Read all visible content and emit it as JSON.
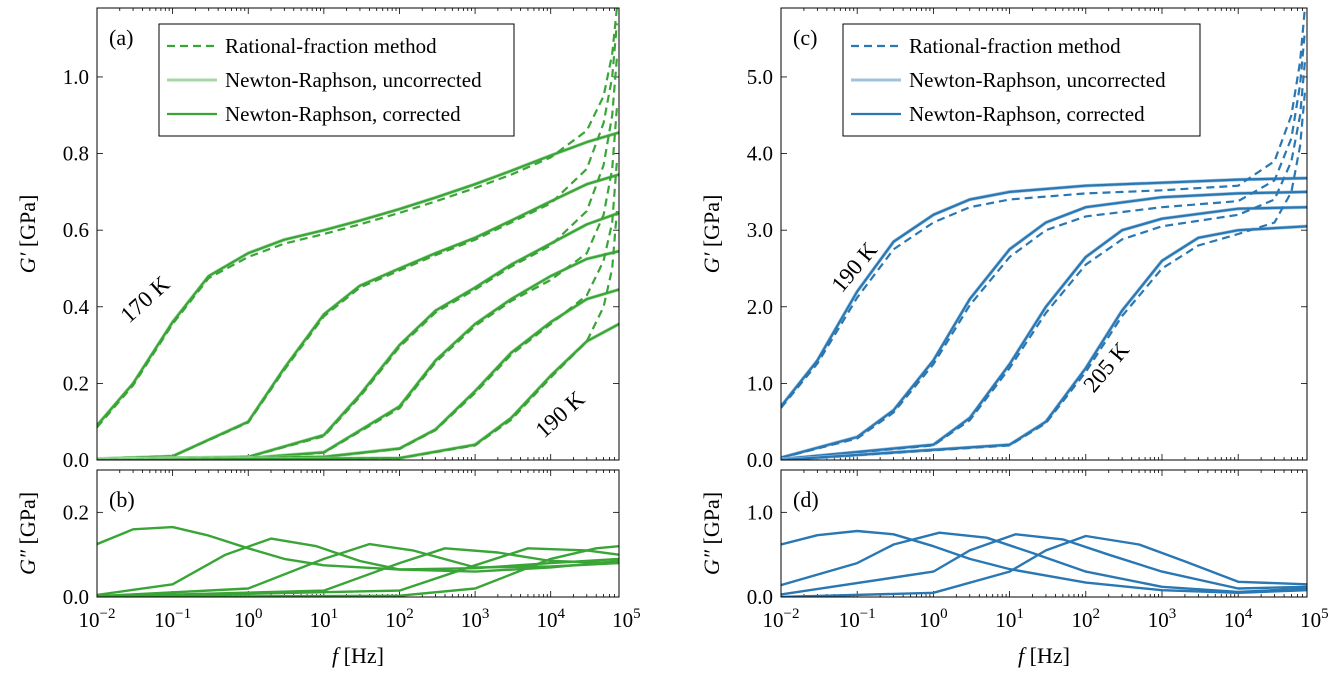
{
  "chart_data": [
    {
      "panel": "a",
      "type": "line",
      "panel_label": "(a)",
      "xlabel": "",
      "ylabel": "G′ [GPa]",
      "xscale": "log",
      "xlim": [
        0.01,
        80000
      ],
      "ylim": [
        0,
        1.18
      ],
      "yticks": [
        "0.0",
        "0.2",
        "0.4",
        "0.6",
        "0.8",
        "1.0"
      ],
      "color": "#3aa537",
      "legend": {
        "placement": "top-left",
        "entries": [
          "Rational-fraction method",
          "Newton-Raphson, uncorrected",
          "Newton-Raphson, corrected"
        ]
      },
      "annotations": [
        "170 K",
        "190 K"
      ],
      "series": [
        {
          "corrected": {
            "x": [
              0.01,
              0.03,
              0.1,
              0.3,
              1,
              3,
              10,
              30,
              100,
              300,
              1000,
              3000,
              10000,
              30000,
              80000
            ],
            "y": [
              0.09,
              0.2,
              0.36,
              0.48,
              0.54,
              0.575,
              0.6,
              0.625,
              0.655,
              0.685,
              0.72,
              0.755,
              0.795,
              0.83,
              0.855
            ]
          },
          "rational": {
            "x": [
              0.01,
              0.03,
              0.1,
              0.3,
              1,
              3,
              10,
              30,
              100,
              300,
              1000,
              3000,
              10000,
              30000,
              50000,
              65000,
              75000
            ],
            "y": [
              0.085,
              0.195,
              0.355,
              0.475,
              0.53,
              0.565,
              0.59,
              0.615,
              0.645,
              0.675,
              0.71,
              0.745,
              0.79,
              0.86,
              0.95,
              1.06,
              1.18
            ]
          }
        },
        {
          "corrected": {
            "x": [
              0.01,
              0.1,
              1,
              3,
              10,
              30,
              100,
              300,
              1000,
              3000,
              10000,
              30000,
              80000
            ],
            "y": [
              0.003,
              0.01,
              0.1,
              0.24,
              0.38,
              0.455,
              0.5,
              0.54,
              0.58,
              0.625,
              0.675,
              0.72,
              0.745
            ]
          },
          "rational": {
            "x": [
              0.01,
              0.1,
              1,
              3,
              10,
              30,
              100,
              300,
              1000,
              3000,
              10000,
              30000,
              50000,
              65000,
              75000
            ],
            "y": [
              0.003,
              0.01,
              0.098,
              0.235,
              0.375,
              0.45,
              0.495,
              0.535,
              0.575,
              0.62,
              0.67,
              0.76,
              0.88,
              1.0,
              1.14
            ]
          }
        },
        {
          "corrected": {
            "x": [
              0.01,
              1,
              10,
              30,
              100,
              300,
              1000,
              3000,
              10000,
              30000,
              80000
            ],
            "y": [
              0.002,
              0.008,
              0.065,
              0.17,
              0.3,
              0.39,
              0.45,
              0.51,
              0.565,
              0.615,
              0.645
            ]
          },
          "rational": {
            "x": [
              0.01,
              1,
              10,
              30,
              100,
              300,
              1000,
              3000,
              10000,
              30000,
              50000,
              65000,
              75000
            ],
            "y": [
              0.002,
              0.008,
              0.062,
              0.165,
              0.295,
              0.385,
              0.445,
              0.505,
              0.56,
              0.65,
              0.77,
              0.9,
              1.05
            ]
          }
        },
        {
          "corrected": {
            "x": [
              0.01,
              1,
              10,
              100,
              300,
              1000,
              3000,
              10000,
              30000,
              80000
            ],
            "y": [
              0.001,
              0.005,
              0.02,
              0.14,
              0.26,
              0.355,
              0.42,
              0.48,
              0.525,
              0.545
            ]
          },
          "rational": {
            "x": [
              0.01,
              1,
              10,
              100,
              300,
              1000,
              3000,
              10000,
              30000,
              50000,
              65000,
              75000
            ],
            "y": [
              0.001,
              0.005,
              0.019,
              0.135,
              0.255,
              0.35,
              0.415,
              0.47,
              0.54,
              0.64,
              0.76,
              0.92
            ]
          }
        },
        {
          "corrected": {
            "x": [
              0.01,
              10,
              100,
              300,
              1000,
              3000,
              10000,
              30000,
              80000
            ],
            "y": [
              0.001,
              0.008,
              0.03,
              0.08,
              0.18,
              0.28,
              0.36,
              0.42,
              0.445
            ]
          },
          "rational": {
            "x": [
              0.01,
              10,
              100,
              300,
              1000,
              3000,
              10000,
              30000,
              50000,
              65000,
              75000
            ],
            "y": [
              0.001,
              0.008,
              0.029,
              0.078,
              0.175,
              0.275,
              0.355,
              0.43,
              0.52,
              0.62,
              0.78
            ]
          }
        },
        {
          "corrected": {
            "x": [
              0.01,
              100,
              1000,
              3000,
              10000,
              30000,
              80000
            ],
            "y": [
              0.0,
              0.005,
              0.04,
              0.11,
              0.22,
              0.31,
              0.355
            ]
          },
          "rational": {
            "x": [
              0.01,
              100,
              1000,
              3000,
              10000,
              30000,
              50000,
              65000,
              75000
            ],
            "y": [
              0.0,
              0.005,
              0.038,
              0.105,
              0.215,
              0.31,
              0.4,
              0.5,
              0.65
            ]
          }
        }
      ]
    },
    {
      "panel": "b",
      "type": "line",
      "panel_label": "(b)",
      "xlabel": "f [Hz]",
      "ylabel": "G″ [GPa]",
      "xscale": "log",
      "xlim": [
        0.01,
        80000
      ],
      "ylim": [
        0,
        0.3
      ],
      "yticks": [
        "0.0",
        "0.2"
      ],
      "xticks": [
        "10",
        "10",
        "10",
        "10",
        "10",
        "10",
        "10",
        "10"
      ],
      "xtick_exponents": [
        "−2",
        "−1",
        "0",
        "1",
        "2",
        "3",
        "4",
        "5"
      ],
      "color": "#3aa537",
      "series": [
        {
          "x": [
            0.01,
            0.03,
            0.1,
            0.3,
            1,
            3,
            10,
            100,
            1000,
            10000,
            80000
          ],
          "y": [
            0.125,
            0.16,
            0.165,
            0.145,
            0.115,
            0.09,
            0.075,
            0.065,
            0.068,
            0.08,
            0.09
          ]
        },
        {
          "x": [
            0.01,
            0.1,
            0.5,
            2,
            8,
            30,
            100,
            1000,
            10000,
            80000
          ],
          "y": [
            0.005,
            0.03,
            0.1,
            0.138,
            0.12,
            0.085,
            0.065,
            0.06,
            0.07,
            0.085
          ]
        },
        {
          "x": [
            0.01,
            1,
            10,
            40,
            150,
            1000,
            10000,
            80000
          ],
          "y": [
            0.002,
            0.02,
            0.09,
            0.125,
            0.11,
            0.07,
            0.072,
            0.08
          ]
        },
        {
          "x": [
            0.01,
            10,
            100,
            400,
            2000,
            10000,
            80000
          ],
          "y": [
            0.001,
            0.015,
            0.08,
            0.115,
            0.105,
            0.085,
            0.08
          ]
        },
        {
          "x": [
            0.01,
            100,
            1000,
            5000,
            30000,
            80000
          ],
          "y": [
            0.0,
            0.015,
            0.075,
            0.115,
            0.11,
            0.1
          ]
        },
        {
          "x": [
            0.01,
            100,
            1000,
            10000,
            40000,
            80000
          ],
          "y": [
            0.0,
            0.003,
            0.02,
            0.09,
            0.115,
            0.12
          ]
        }
      ]
    },
    {
      "panel": "c",
      "type": "line",
      "panel_label": "(c)",
      "xlabel": "",
      "ylabel": "G′ [GPa]",
      "xscale": "log",
      "xlim": [
        0.01,
        80000
      ],
      "ylim": [
        0,
        5.9
      ],
      "yticks": [
        "0.0",
        "1.0",
        "2.0",
        "3.0",
        "4.0",
        "5.0"
      ],
      "color": "#2977b3",
      "legend": {
        "placement": "top-left",
        "entries": [
          "Rational-fraction method",
          "Newton-Raphson, uncorrected",
          "Newton-Raphson, corrected"
        ]
      },
      "annotations": [
        "190 K",
        "205 K"
      ],
      "series": [
        {
          "corrected": {
            "x": [
              0.01,
              0.03,
              0.1,
              0.3,
              1,
              3,
              10,
              100,
              1000,
              10000,
              80000
            ],
            "y": [
              0.7,
              1.3,
              2.2,
              2.85,
              3.2,
              3.4,
              3.5,
              3.58,
              3.62,
              3.66,
              3.68
            ]
          },
          "rational": {
            "x": [
              0.01,
              0.03,
              0.1,
              0.3,
              1,
              3,
              10,
              100,
              1000,
              10000,
              30000,
              50000,
              65000,
              75000
            ],
            "y": [
              0.68,
              1.26,
              2.12,
              2.75,
              3.1,
              3.3,
              3.4,
              3.48,
              3.52,
              3.58,
              3.9,
              4.5,
              5.2,
              5.9
            ]
          }
        },
        {
          "corrected": {
            "x": [
              0.01,
              0.1,
              0.3,
              1,
              3,
              10,
              30,
              100,
              1000,
              10000,
              80000
            ],
            "y": [
              0.03,
              0.3,
              0.65,
              1.3,
              2.1,
              2.75,
              3.1,
              3.3,
              3.43,
              3.48,
              3.5
            ]
          },
          "rational": {
            "x": [
              0.01,
              0.1,
              0.3,
              1,
              3,
              10,
              30,
              100,
              1000,
              10000,
              30000,
              50000,
              65000,
              75000
            ],
            "y": [
              0.03,
              0.28,
              0.62,
              1.25,
              2.02,
              2.65,
              3.0,
              3.18,
              3.3,
              3.38,
              3.65,
              4.2,
              4.9,
              5.6
            ]
          }
        },
        {
          "corrected": {
            "x": [
              0.01,
              1,
              3,
              10,
              30,
              100,
              300,
              1000,
              10000,
              80000
            ],
            "y": [
              0.01,
              0.2,
              0.55,
              1.25,
              2.0,
              2.65,
              3.0,
              3.15,
              3.28,
              3.3
            ]
          },
          "rational": {
            "x": [
              0.01,
              1,
              3,
              10,
              30,
              100,
              300,
              1000,
              10000,
              30000,
              50000,
              65000,
              75000
            ],
            "y": [
              0.01,
              0.19,
              0.52,
              1.2,
              1.92,
              2.55,
              2.88,
              3.05,
              3.2,
              3.4,
              3.9,
              4.5,
              5.2
            ]
          }
        },
        {
          "corrected": {
            "x": [
              0.01,
              10,
              30,
              100,
              300,
              1000,
              3000,
              10000,
              80000
            ],
            "y": [
              0.0,
              0.2,
              0.5,
              1.2,
              1.95,
              2.6,
              2.9,
              3.0,
              3.05
            ]
          },
          "rational": {
            "x": [
              0.01,
              10,
              30,
              100,
              300,
              1000,
              3000,
              10000,
              30000,
              50000,
              65000,
              75000
            ],
            "y": [
              0.0,
              0.19,
              0.48,
              1.15,
              1.88,
              2.5,
              2.8,
              2.95,
              3.1,
              3.5,
              4.1,
              4.8
            ]
          }
        }
      ]
    },
    {
      "panel": "d",
      "type": "line",
      "panel_label": "(d)",
      "xlabel": "f [Hz]",
      "ylabel": "G″ [GPa]",
      "xscale": "log",
      "xlim": [
        0.01,
        80000
      ],
      "ylim": [
        0,
        1.5
      ],
      "yticks": [
        "0.0",
        "1.0"
      ],
      "xticks": [
        "10",
        "10",
        "10",
        "10",
        "10",
        "10",
        "10",
        "10"
      ],
      "xtick_exponents": [
        "−2",
        "−1",
        "0",
        "1",
        "2",
        "3",
        "4",
        "5"
      ],
      "color": "#2977b3",
      "series": [
        {
          "x": [
            0.01,
            0.03,
            0.1,
            0.3,
            1,
            3,
            10,
            100,
            1000,
            10000,
            80000
          ],
          "y": [
            0.62,
            0.73,
            0.78,
            0.74,
            0.6,
            0.45,
            0.33,
            0.17,
            0.08,
            0.05,
            0.08
          ]
        },
        {
          "x": [
            0.01,
            0.1,
            0.3,
            1.2,
            5,
            20,
            100,
            1000,
            10000,
            80000
          ],
          "y": [
            0.14,
            0.4,
            0.62,
            0.76,
            0.7,
            0.52,
            0.3,
            0.12,
            0.06,
            0.1
          ]
        },
        {
          "x": [
            0.01,
            1,
            3,
            12,
            50,
            200,
            1000,
            10000,
            80000
          ],
          "y": [
            0.03,
            0.3,
            0.55,
            0.74,
            0.68,
            0.5,
            0.3,
            0.1,
            0.12
          ]
        },
        {
          "x": [
            0.01,
            1,
            10,
            30,
            100,
            500,
            2000,
            10000,
            80000
          ],
          "y": [
            0.0,
            0.05,
            0.3,
            0.55,
            0.72,
            0.62,
            0.42,
            0.18,
            0.15
          ]
        }
      ]
    }
  ]
}
